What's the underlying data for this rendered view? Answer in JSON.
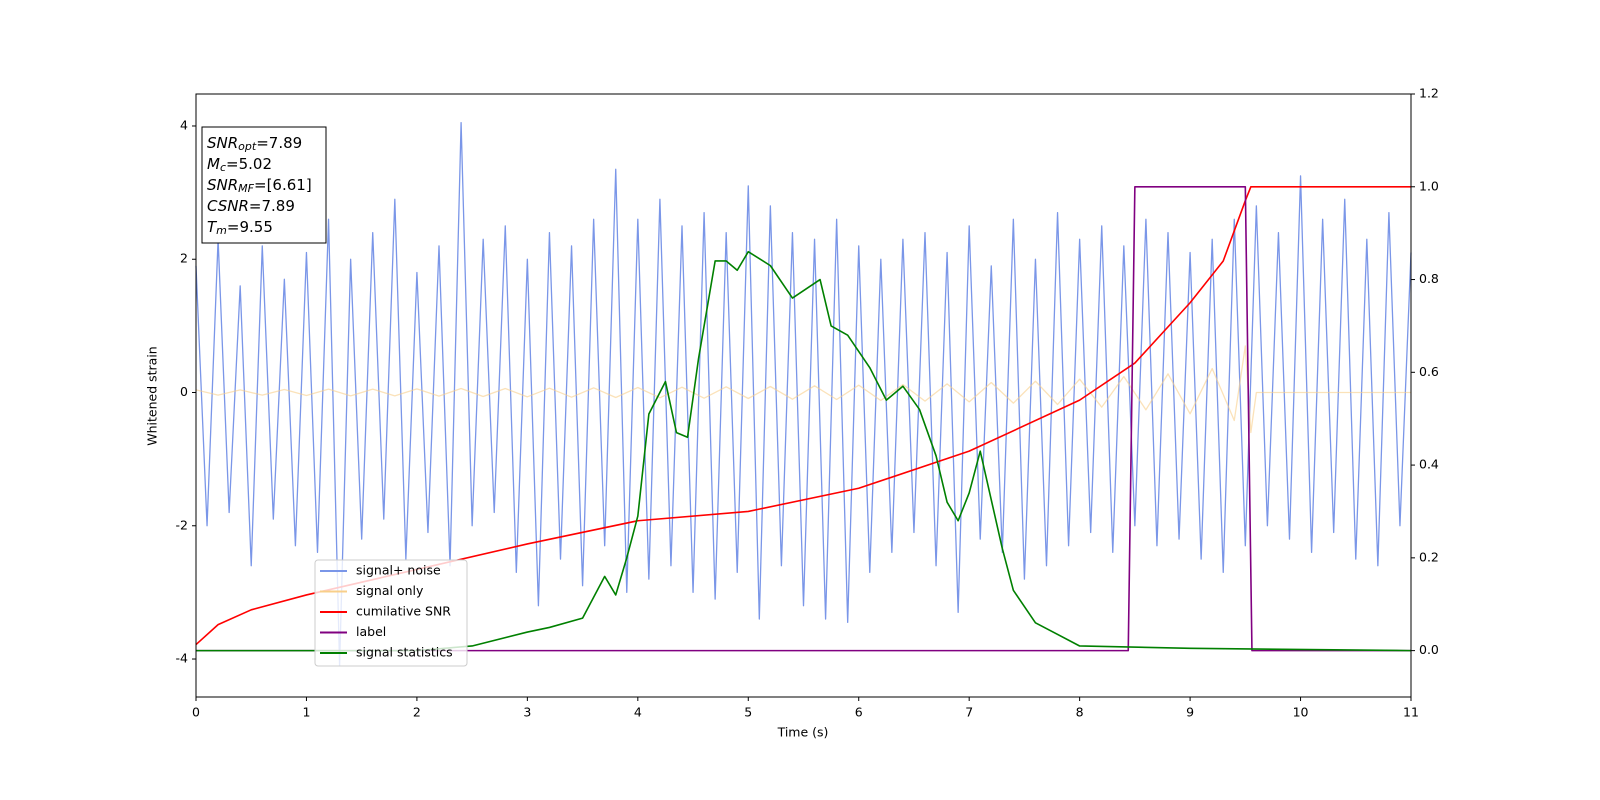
{
  "chart_data": {
    "type": "line",
    "xlabel": "Time (s)",
    "ylabel": "Whitened strain",
    "xlim": [
      0,
      11
    ],
    "xticks": [
      0,
      1,
      2,
      3,
      4,
      5,
      6,
      7,
      8,
      9,
      10,
      11
    ],
    "ylim": [
      -4.57,
      4.48
    ],
    "yticks": [
      -4,
      -2,
      0,
      2,
      4
    ],
    "y2lim": [
      -0.1,
      1.2
    ],
    "y2ticks": [
      {
        "value": 0,
        "label": "0.0"
      },
      0.2,
      0.4,
      0.6,
      0.8,
      {
        "value": 1,
        "label": "1.0"
      },
      1.2
    ],
    "legend": "lower left",
    "annotations": [
      {
        "label": "SNR",
        "sub": "opt",
        "text": "=7.89"
      },
      {
        "label": "M",
        "sub": "c",
        "text": "=5.02"
      },
      {
        "label": "SNR",
        "sub": "MF",
        "text": "=[6.61]"
      },
      {
        "label": "CSNR",
        "text": "=7.89"
      },
      {
        "label": "T",
        "sub": "m",
        "text": "=9.55"
      }
    ],
    "series": [
      {
        "name": "signal+ noise",
        "color": "#7a96e8",
        "x": [
          0,
          0.1,
          0.2,
          0.3,
          0.4,
          0.5,
          0.6,
          0.7,
          0.8,
          0.9,
          1,
          1.1,
          1.2,
          1.3,
          1.4,
          1.5,
          1.6,
          1.7,
          1.8,
          1.9,
          2,
          2.1,
          2.2,
          2.3,
          2.4,
          2.5,
          2.6,
          2.7,
          2.8,
          2.9,
          3,
          3.1,
          3.2,
          3.3,
          3.4,
          3.5,
          3.6,
          3.7,
          3.8,
          3.9,
          4,
          4.1,
          4.2,
          4.3,
          4.4,
          4.5,
          4.6,
          4.7,
          4.8,
          4.9,
          5,
          5.1,
          5.2,
          5.3,
          5.4,
          5.5,
          5.6,
          5.7,
          5.8,
          5.9,
          6,
          6.1,
          6.2,
          6.3,
          6.4,
          6.5,
          6.6,
          6.7,
          6.8,
          6.9,
          7,
          7.1,
          7.2,
          7.3,
          7.4,
          7.5,
          7.6,
          7.7,
          7.8,
          7.9,
          8,
          8.1,
          8.2,
          8.3,
          8.4,
          8.5,
          8.6,
          8.7,
          8.8,
          8.9,
          9,
          9.1,
          9.2,
          9.3,
          9.4,
          9.5,
          9.6,
          9.7,
          9.8,
          9.9,
          10,
          10.1,
          10.2,
          10.3,
          10.4,
          10.5,
          10.6,
          10.7,
          10.8,
          10.9,
          11
        ],
        "values": [
          1.9,
          -2.0,
          2.3,
          -1.8,
          1.6,
          -2.6,
          2.2,
          -1.9,
          1.7,
          -2.3,
          2.1,
          -2.4,
          2.6,
          -4.1,
          2.0,
          -2.2,
          2.4,
          -1.9,
          2.9,
          -2.5,
          1.8,
          -2.1,
          2.2,
          -2.6,
          4.05,
          -2.0,
          2.3,
          -1.8,
          2.5,
          -2.7,
          2.0,
          -3.2,
          2.4,
          -2.5,
          2.2,
          -2.9,
          2.6,
          -2.3,
          3.35,
          -3.0,
          2.6,
          -2.8,
          2.9,
          -2.6,
          2.5,
          -3.0,
          2.7,
          -3.1,
          2.4,
          -2.7,
          3.1,
          -3.4,
          2.8,
          -2.6,
          2.4,
          -3.2,
          2.3,
          -3.4,
          2.6,
          -3.45,
          2.2,
          -2.7,
          2.0,
          -2.4,
          2.3,
          -2.1,
          2.4,
          -2.6,
          2.1,
          -3.3,
          2.5,
          -2.2,
          1.9,
          -2.4,
          2.6,
          -2.8,
          2.0,
          -2.6,
          2.7,
          -2.3,
          2.3,
          -2.1,
          2.5,
          -2.4,
          2.2,
          -2.0,
          2.6,
          -2.3,
          2.4,
          -2.2,
          2.1,
          -2.5,
          2.3,
          -2.7,
          2.6,
          -2.3,
          2.8,
          -2.0,
          2.4,
          -2.2,
          3.25,
          -2.4,
          2.6,
          -2.1,
          2.9,
          -2.5,
          2.3,
          -2.6,
          2.7,
          -2.0,
          2.1
        ]
      },
      {
        "name": "signal only",
        "color": "#f8cf8a",
        "x": [
          0,
          0.2,
          0.4,
          0.6,
          0.8,
          1,
          1.2,
          1.4,
          1.6,
          1.8,
          2,
          2.2,
          2.4,
          2.6,
          2.8,
          3,
          3.2,
          3.4,
          3.6,
          3.8,
          4,
          4.2,
          4.4,
          4.6,
          4.8,
          5,
          5.2,
          5.4,
          5.6,
          5.8,
          6,
          6.2,
          6.4,
          6.6,
          6.8,
          7,
          7.2,
          7.4,
          7.6,
          7.8,
          8,
          8.2,
          8.4,
          8.6,
          8.8,
          9,
          9.2,
          9.4,
          9.5,
          9.55,
          9.6,
          11
        ],
        "values": [
          0.04,
          -0.04,
          0.04,
          -0.04,
          0.045,
          -0.045,
          0.05,
          -0.05,
          0.05,
          -0.05,
          0.055,
          -0.055,
          0.06,
          -0.06,
          0.06,
          -0.065,
          0.065,
          -0.07,
          0.07,
          -0.075,
          0.075,
          -0.08,
          0.08,
          -0.085,
          0.085,
          -0.09,
          0.09,
          -0.1,
          0.1,
          -0.105,
          0.11,
          -0.12,
          0.12,
          -0.13,
          0.13,
          -0.14,
          0.15,
          -0.16,
          0.17,
          -0.18,
          0.2,
          -0.22,
          0.24,
          -0.26,
          0.28,
          -0.32,
          0.36,
          -0.42,
          0.7,
          -0.6,
          0,
          0
        ]
      },
      {
        "name": "cumilative SNR",
        "color": "#ff0000",
        "axis": "y2",
        "x": [
          0,
          0.2,
          0.5,
          1,
          2,
          3,
          4,
          5,
          6,
          7,
          8,
          8.5,
          9,
          9.3,
          9.5,
          9.55,
          11
        ],
        "values": [
          0.013,
          0.056,
          0.088,
          0.12,
          0.175,
          0.23,
          0.28,
          0.3,
          0.35,
          0.43,
          0.54,
          0.62,
          0.75,
          0.84,
          0.97,
          1.0,
          1.0
        ]
      },
      {
        "name": "label",
        "color": "#800080",
        "axis": "y2",
        "x": [
          0,
          8.44,
          8.5,
          9.5,
          9.56,
          11
        ],
        "values": [
          0,
          0,
          1,
          1,
          0,
          0
        ]
      },
      {
        "name": "signal statistics",
        "color": "#008000",
        "axis": "y2",
        "x": [
          0,
          2,
          2.5,
          3,
          3.2,
          3.5,
          3.7,
          3.8,
          3.9,
          4,
          4.1,
          4.25,
          4.35,
          4.45,
          4.55,
          4.7,
          4.8,
          4.9,
          5,
          5.2,
          5.4,
          5.65,
          5.75,
          5.9,
          6.1,
          6.25,
          6.4,
          6.55,
          6.7,
          6.8,
          6.9,
          7,
          7.1,
          7.3,
          7.4,
          7.6,
          8,
          9,
          11
        ],
        "values": [
          0,
          0,
          0.01,
          0.04,
          0.05,
          0.07,
          0.16,
          0.12,
          0.2,
          0.29,
          0.51,
          0.58,
          0.47,
          0.46,
          0.63,
          0.84,
          0.84,
          0.82,
          0.86,
          0.83,
          0.76,
          0.8,
          0.7,
          0.68,
          0.61,
          0.54,
          0.57,
          0.52,
          0.42,
          0.32,
          0.28,
          0.34,
          0.43,
          0.22,
          0.13,
          0.06,
          0.01,
          0.005,
          0
        ]
      }
    ]
  }
}
